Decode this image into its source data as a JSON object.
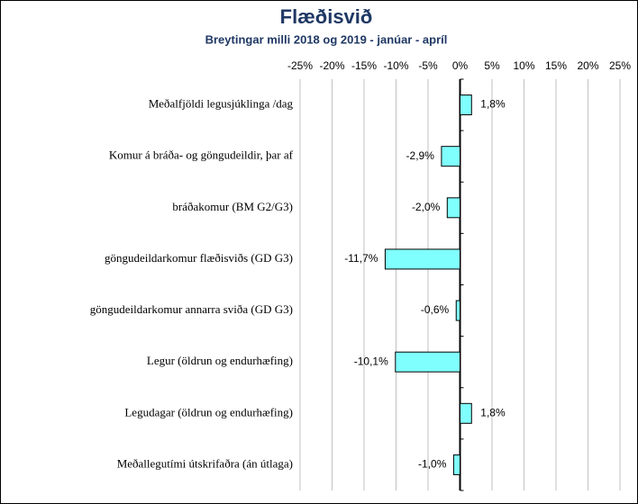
{
  "chart_data": {
    "type": "bar",
    "orientation": "horizontal",
    "title": "Flæðisvið",
    "subtitle": "Breytingar milli 2018 og 2019 - janúar - apríl",
    "categories": [
      "Meðalfjöldi legusjúklinga /dag",
      "Komur á bráða- og göngudeildir,  þar af",
      "bráðakomur (BM G2/G3)",
      "göngudeildarkomur flæðisviðs (GD G3)",
      "göngudeildarkomur annarra sviða (GD G3)",
      "Legur (öldrun og endurhæfing)",
      "Legudagar (öldrun og endurhæfing)",
      "Meðallegutími útskrifaðra (án útlaga)"
    ],
    "values": [
      1.8,
      -2.9,
      -2.0,
      -11.7,
      -0.6,
      -10.1,
      1.8,
      -1.0
    ],
    "value_labels": [
      "1,8%",
      "-2,9%",
      "-2,0%",
      "-11,7%",
      "-0,6%",
      "-10,1%",
      "1,8%",
      "-1,0%"
    ],
    "color": "#80ffff",
    "xlim": [
      -25,
      25
    ],
    "xticks": [
      {
        "value": -25,
        "label": "-25%"
      },
      {
        "value": -20,
        "label": "-20%"
      },
      {
        "value": -15,
        "label": "-15%"
      },
      {
        "value": -10,
        "label": "-10%"
      },
      {
        "value": -5,
        "label": "-5%"
      },
      {
        "value": 0,
        "label": "0%"
      },
      {
        "value": 5,
        "label": "5%"
      },
      {
        "value": 10,
        "label": "10%"
      },
      {
        "value": 15,
        "label": "15%"
      },
      {
        "value": 20,
        "label": "20%"
      },
      {
        "value": 25,
        "label": "25%"
      }
    ],
    "grid": true
  }
}
